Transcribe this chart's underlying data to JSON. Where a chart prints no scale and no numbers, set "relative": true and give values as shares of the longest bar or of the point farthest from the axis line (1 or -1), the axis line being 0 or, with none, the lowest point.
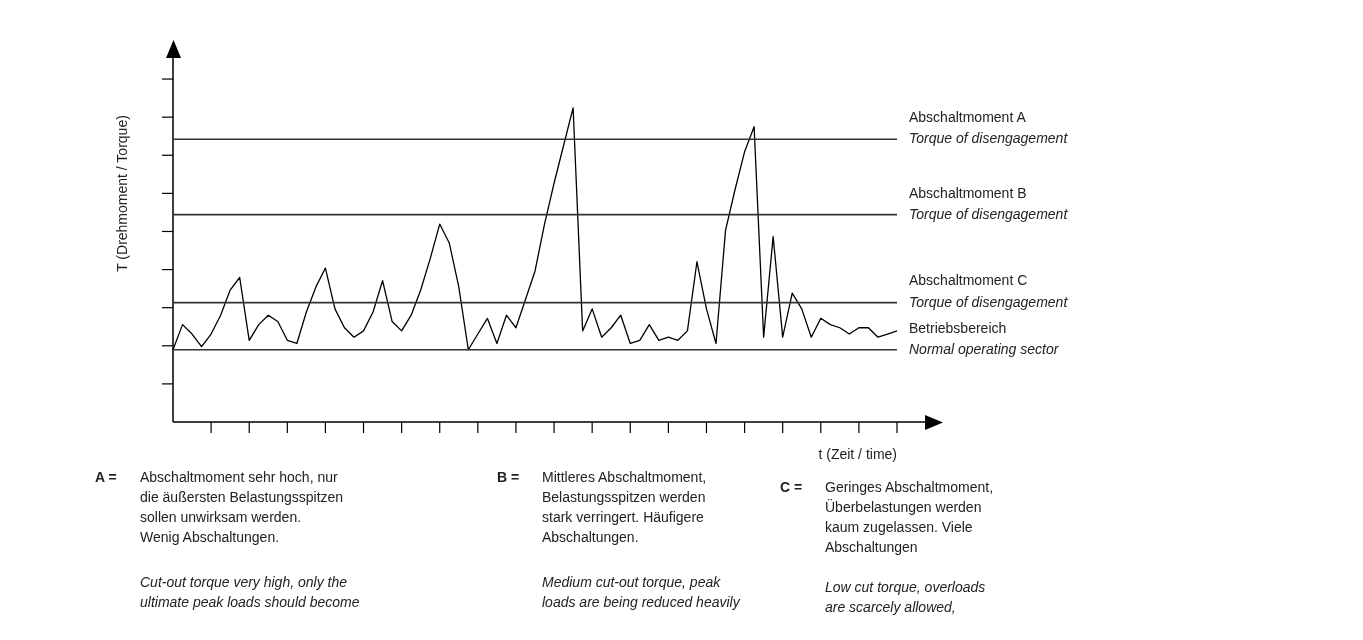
{
  "chart_data": {
    "type": "line",
    "ylabel": "T (Drehmoment / Torque)",
    "xlabel": "t (Zeit / time)",
    "relative": true,
    "grid": false,
    "legend": false,
    "tick_labels": false,
    "marker": "none",
    "line_style": "solid",
    "categories": [
      null,
      null,
      null,
      null,
      null,
      null,
      null,
      null,
      null,
      null,
      null,
      null,
      null,
      null,
      null,
      null,
      null,
      null,
      null,
      null,
      null,
      null,
      null,
      null,
      null,
      null,
      null,
      null,
      null,
      null,
      null,
      null,
      null,
      null,
      null,
      null,
      null,
      null,
      null,
      null,
      null,
      null,
      null,
      null,
      null,
      null,
      null,
      null,
      null,
      null,
      null,
      null,
      null,
      null,
      null,
      null,
      null,
      null,
      null,
      null,
      null,
      null,
      null,
      null,
      null,
      null,
      null,
      null,
      null,
      null,
      null,
      null,
      null,
      null,
      null,
      null,
      null
    ],
    "series": [
      {
        "color": "#000000",
        "values": [
          0.23,
          0.31,
          0.28,
          0.24,
          0.28,
          0.34,
          0.42,
          0.46,
          0.26,
          0.31,
          0.34,
          0.32,
          0.26,
          0.25,
          0.35,
          0.43,
          0.49,
          0.36,
          0.3,
          0.27,
          0.29,
          0.35,
          0.45,
          0.32,
          0.29,
          0.34,
          0.42,
          0.52,
          0.63,
          0.57,
          0.43,
          0.23,
          0.28,
          0.33,
          0.25,
          0.34,
          0.3,
          0.39,
          0.48,
          0.63,
          0.76,
          0.88,
          1,
          0.29,
          0.36,
          0.27,
          0.3,
          0.34,
          0.25,
          0.26,
          0.31,
          0.26,
          0.27,
          0.26,
          0.29,
          0.51,
          0.36,
          0.25,
          0.61,
          0.74,
          0.86,
          0.94,
          0.27,
          0.59,
          0.27,
          0.41,
          0.36,
          0.27,
          0.33,
          0.31,
          0.3,
          0.28,
          0.3,
          0.3,
          0.27,
          0.28,
          0.29
        ]
      }
    ],
    "ref_lines": [
      {
        "axis": "y",
        "value": 0.9,
        "label": "Abschaltmoment A\nTorque of disengagement",
        "color": "#333333"
      },
      {
        "axis": "y",
        "value": 0.66,
        "label": "Abschaltmoment B\nTorque of disengagement",
        "color": "#333333"
      },
      {
        "axis": "y",
        "value": 0.38,
        "label": "Abschaltmoment C\nTorque of disengagement",
        "color": "#333333"
      },
      {
        "axis": "y",
        "value": 0.23,
        "label": "Betriebsbereich\nNormal operating sector",
        "color": "#333333"
      }
    ],
    "annotations": [
      "A =",
      "Abschaltmoment sehr hoch, nur\ndie äußersten Belastungsspitzen\nsollen unwirksam werden.\nWenig Abschaltungen.",
      "Cut-out torque very high, only the\nultimate peak loads should become",
      "B =",
      "Mittleres Abschaltmoment,\nBelastungsspitzen werden\nstark verringert. Häufigere\nAbschaltungen.",
      "Medium cut-out torque, peak\nloads are being reduced heavily",
      "C =",
      "Geringes Abschaltmoment,\nÜberbelastungen werden\nkaum zugelassen. Viele\nAbschaltungen",
      "Low cut torque, overloads\nare scarcely allowed,"
    ]
  }
}
